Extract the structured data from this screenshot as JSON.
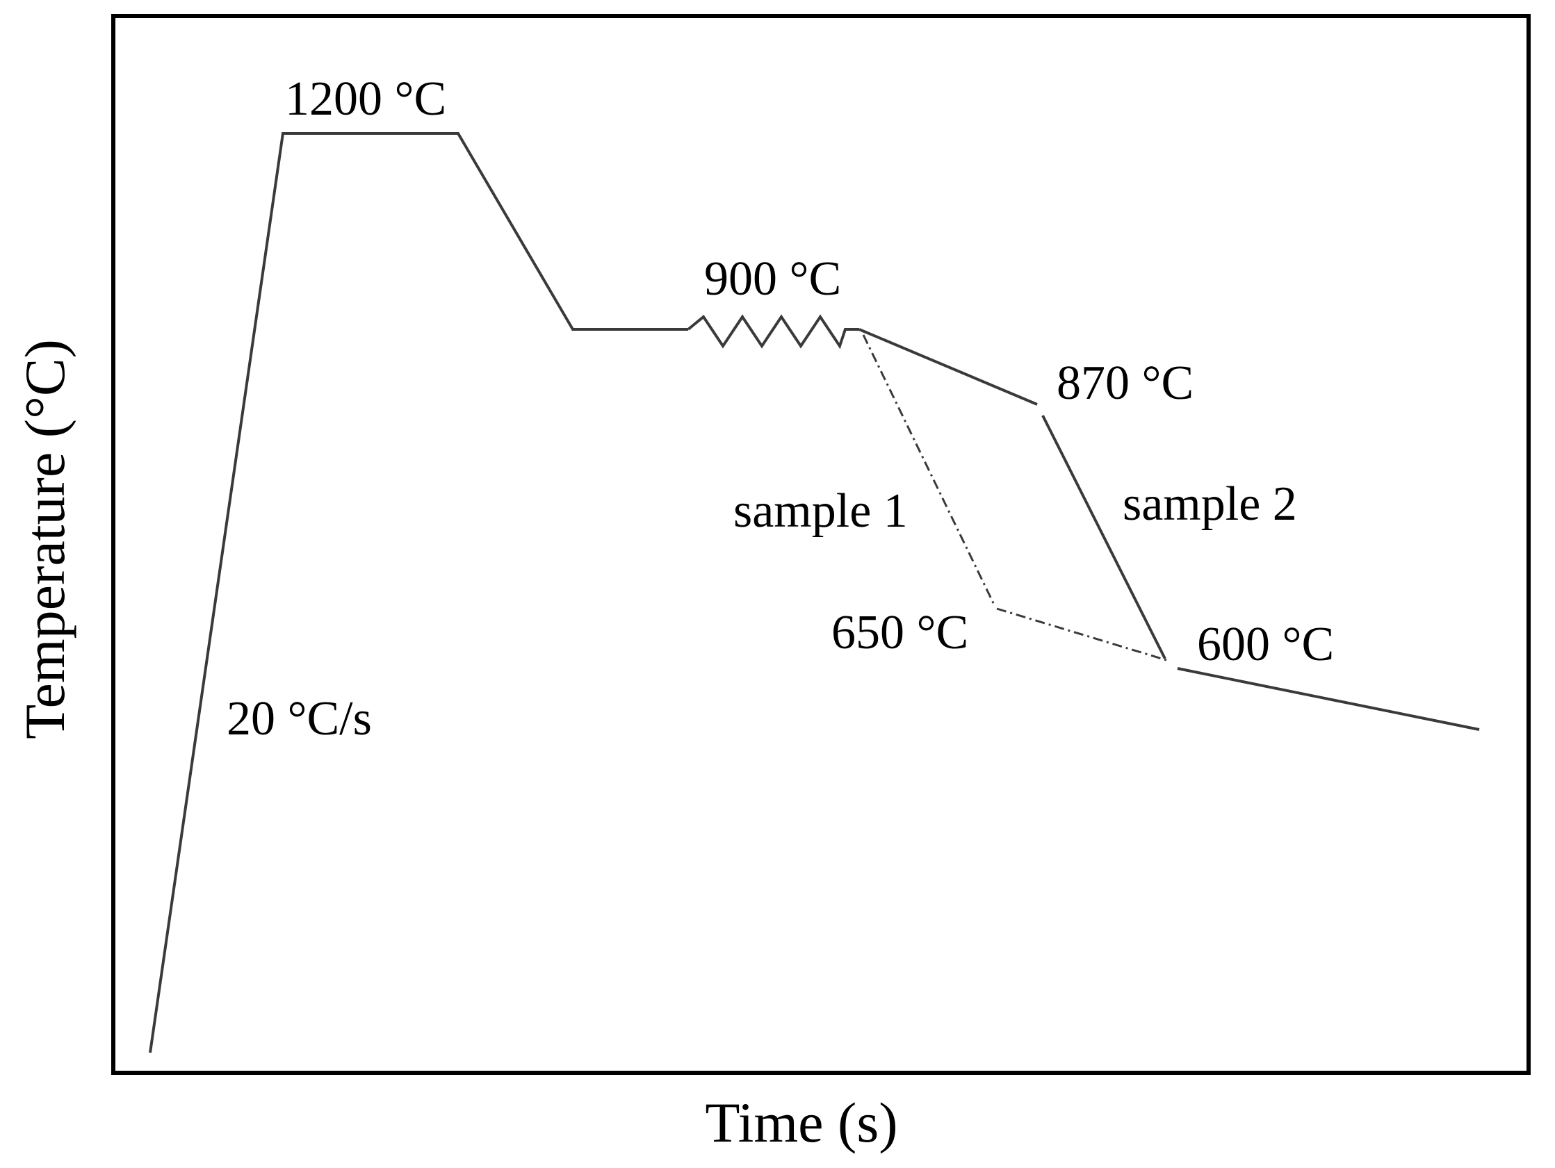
{
  "diagram": {
    "x_axis_label": "Time (s)",
    "y_axis_label": "Temperature (°C)",
    "annotations": {
      "heating_rate": "20 °C/s",
      "reheat_temperature": "1200 °C",
      "deformation_temperature": "900 °C",
      "sample2_start_temperature": "870 °C",
      "sample1_finish_temperature": "650 °C",
      "sample2_finish_temperature": "600 °C",
      "sample1_label": "sample 1",
      "sample2_label": "sample 2"
    },
    "colors": {
      "frame": "#000000",
      "curve": "#3a3a3a",
      "text": "#000000"
    }
  }
}
